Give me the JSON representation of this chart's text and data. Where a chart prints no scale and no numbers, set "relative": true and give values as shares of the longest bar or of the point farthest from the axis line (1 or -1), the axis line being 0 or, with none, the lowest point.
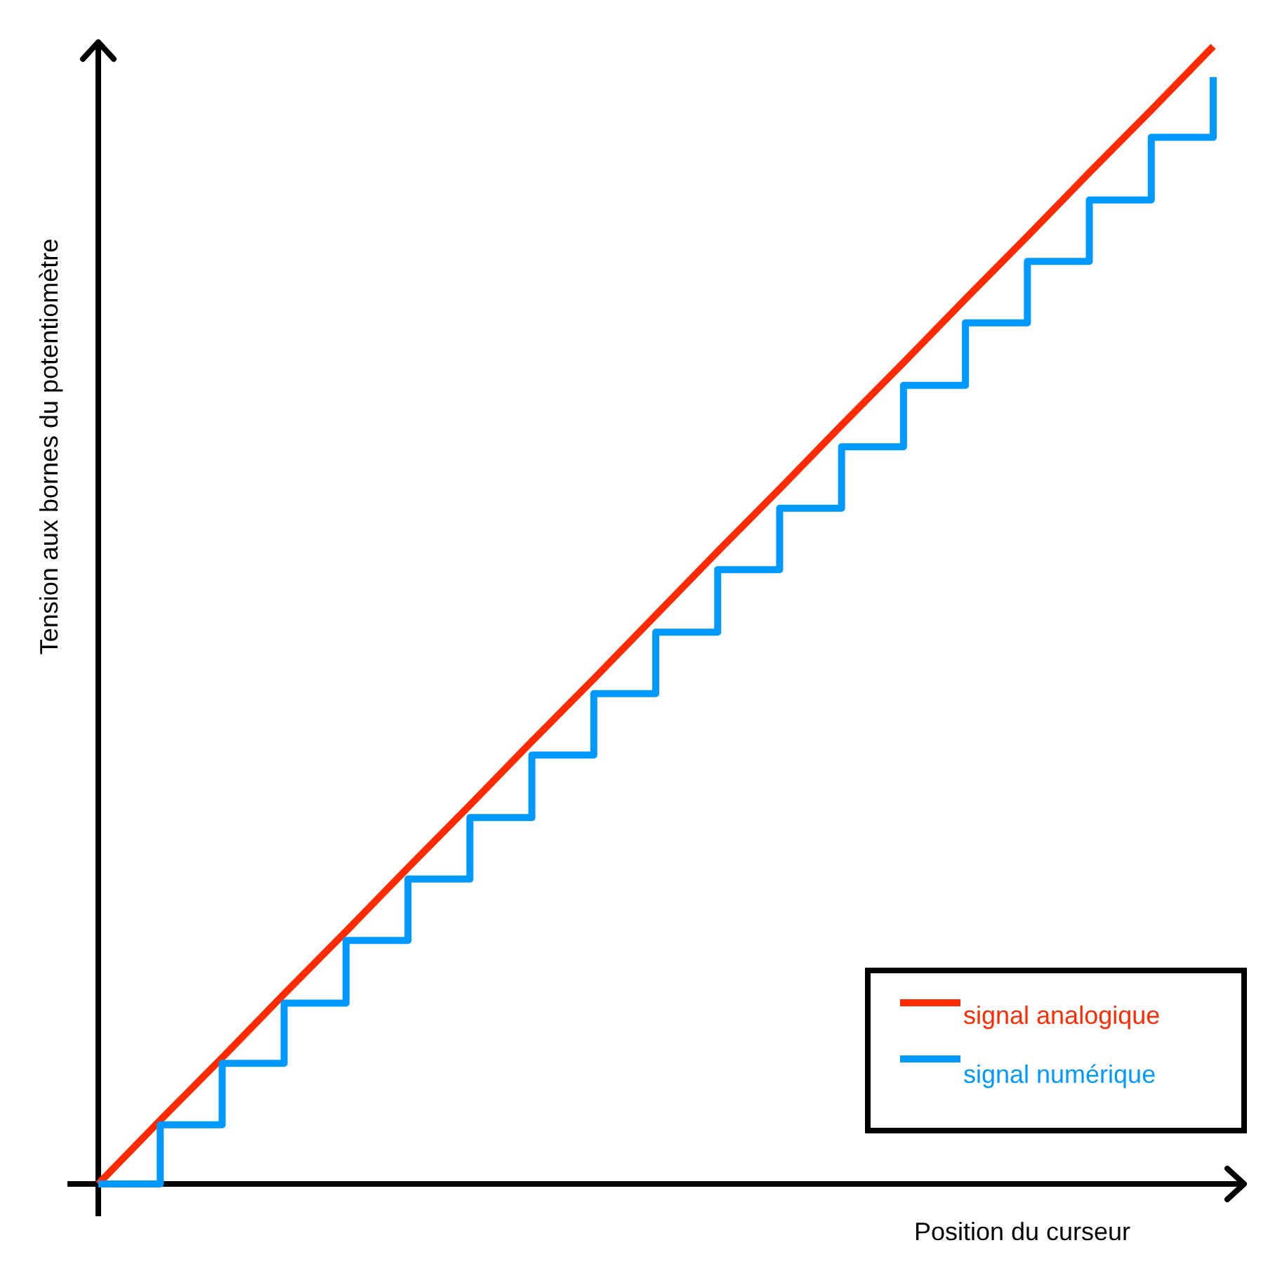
{
  "chart_data": {
    "type": "line",
    "relative": true,
    "xlabel": "Position du curseur",
    "ylabel": "Tension aux bornes du potentiomètre",
    "legend": "bottom right",
    "categories": [
      null,
      null,
      null,
      null,
      null,
      null,
      null,
      null,
      null,
      null,
      null,
      null,
      null,
      null,
      null,
      null,
      null,
      null,
      null
    ],
    "series": [
      {
        "name": "signal analogique",
        "color": "#ff2a00",
        "values": [
          0,
          0.056,
          0.111,
          0.167,
          0.222,
          0.278,
          0.333,
          0.389,
          0.444,
          0.5,
          0.556,
          0.611,
          0.667,
          0.722,
          0.778,
          0.833,
          0.889,
          0.944,
          1
        ]
      },
      {
        "name": "signal numérique",
        "type": "step",
        "color": "#0099ff",
        "values": [
          0,
          0.052,
          0.106,
          0.159,
          0.214,
          0.268,
          0.322,
          0.377,
          0.431,
          0.485,
          0.54,
          0.594,
          0.648,
          0.702,
          0.757,
          0.811,
          0.865,
          0.92,
          0.973
        ]
      }
    ]
  }
}
